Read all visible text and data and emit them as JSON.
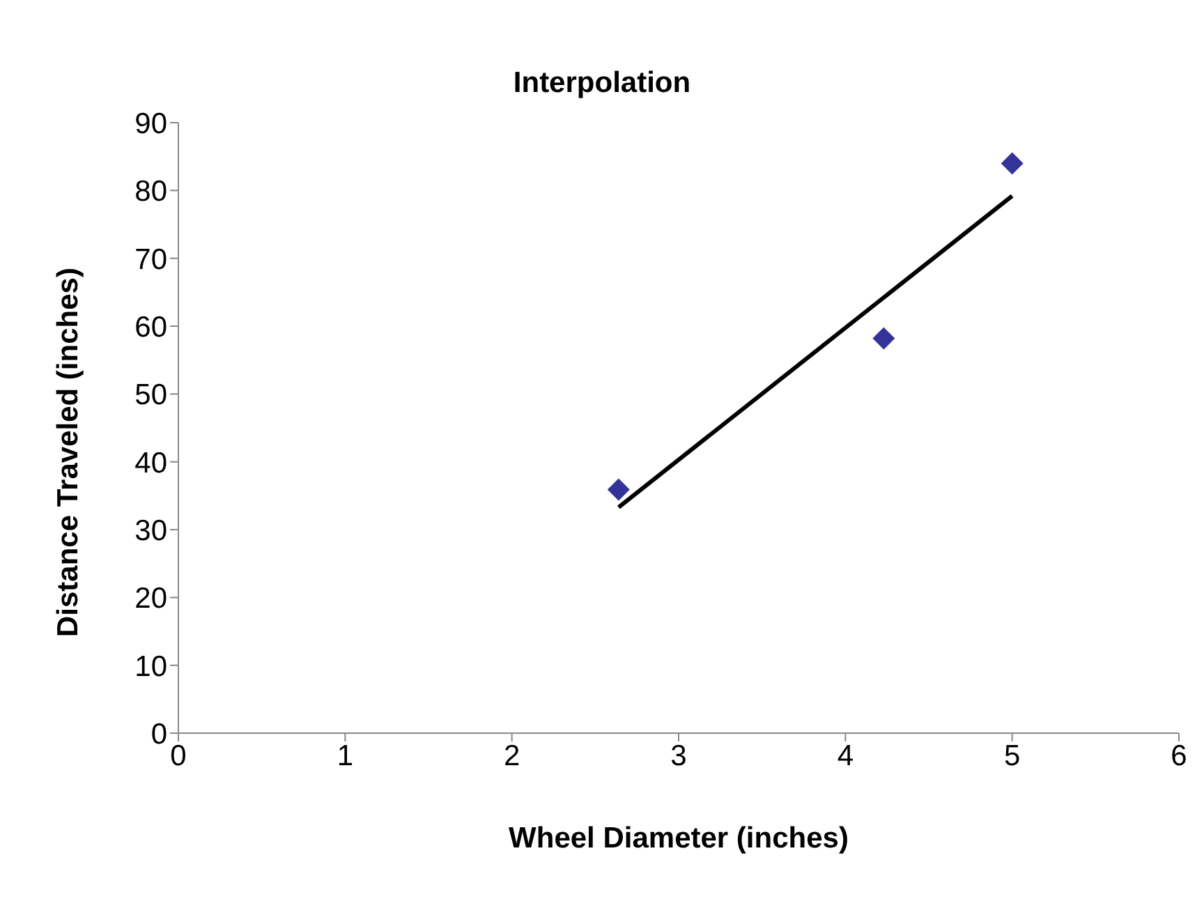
{
  "chart_data": {
    "type": "scatter",
    "title": "Interpolation",
    "xlabel": "Wheel Diameter (inches)",
    "ylabel": "Distance Traveled (inches)",
    "x": [
      2.64,
      4.23,
      5.0
    ],
    "series": [
      {
        "color": "#333399",
        "marker": "diamond",
        "values": [
          35.9,
          58.2,
          84.0
        ]
      },
      {
        "type": "line",
        "color": "#000000",
        "marker": "none",
        "x": [
          2.64,
          5.0
        ],
        "values": [
          33.3,
          79.2
        ]
      }
    ],
    "xlim": [
      0,
      6
    ],
    "xticks": [
      0,
      1,
      2,
      3,
      4,
      5,
      6
    ],
    "ylim": [
      0,
      90
    ],
    "yticks": [
      0,
      10,
      20,
      30,
      40,
      50,
      60,
      70,
      80,
      90
    ],
    "grid": false,
    "legend": false
  }
}
